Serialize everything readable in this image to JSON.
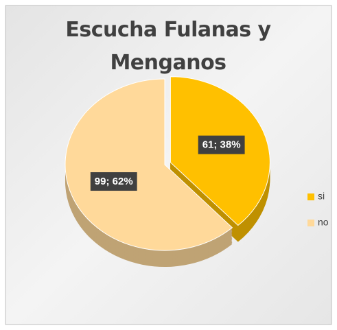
{
  "chart_data": {
    "type": "pie",
    "title": "Escucha Fulanas y Menganos",
    "categories": [
      "si",
      "no"
    ],
    "values": [
      61,
      99
    ],
    "value_labels": [
      "61; 38%",
      "99; 62%"
    ],
    "colors": [
      "#FFC000",
      "#FFD99A"
    ],
    "legend": "right"
  }
}
